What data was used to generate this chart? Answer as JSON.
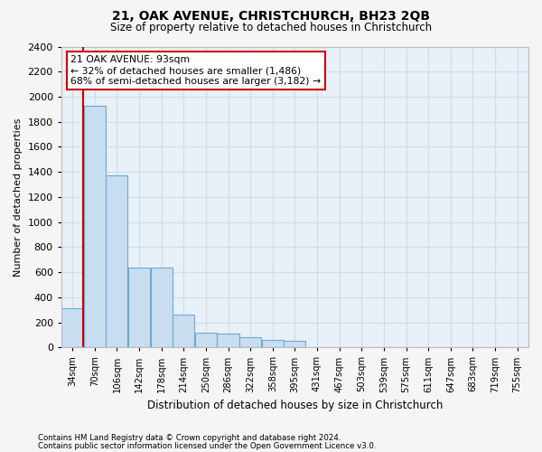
{
  "title1": "21, OAK AVENUE, CHRISTCHURCH, BH23 2QB",
  "title2": "Size of property relative to detached houses in Christchurch",
  "xlabel": "Distribution of detached houses by size in Christchurch",
  "ylabel": "Number of detached properties",
  "bar_color": "#c9ddf0",
  "bar_edge_color": "#6aaad4",
  "background_color": "#e8f0f8",
  "grid_color": "#d0dce8",
  "fig_background": "#f5f5f5",
  "categories": [
    "34sqm",
    "70sqm",
    "106sqm",
    "142sqm",
    "178sqm",
    "214sqm",
    "250sqm",
    "286sqm",
    "322sqm",
    "358sqm",
    "395sqm",
    "431sqm",
    "467sqm",
    "503sqm",
    "539sqm",
    "575sqm",
    "611sqm",
    "647sqm",
    "683sqm",
    "719sqm",
    "755sqm"
  ],
  "values": [
    310,
    1930,
    1370,
    640,
    640,
    260,
    115,
    110,
    80,
    60,
    55,
    0,
    0,
    0,
    0,
    0,
    0,
    0,
    0,
    0,
    0
  ],
  "property_bin_index": 1,
  "red_line_x": 0.5,
  "annotation_text": "21 OAK AVENUE: 93sqm\n← 32% of detached houses are smaller (1,486)\n68% of semi-detached houses are larger (3,182) →",
  "annotation_box_color": "#ffffff",
  "annotation_box_edge_color": "#cc0000",
  "red_line_color": "#cc0000",
  "footnote1": "Contains HM Land Registry data © Crown copyright and database right 2024.",
  "footnote2": "Contains public sector information licensed under the Open Government Licence v3.0.",
  "ylim": [
    0,
    2400
  ],
  "yticks": [
    0,
    200,
    400,
    600,
    800,
    1000,
    1200,
    1400,
    1600,
    1800,
    2000,
    2200,
    2400
  ]
}
